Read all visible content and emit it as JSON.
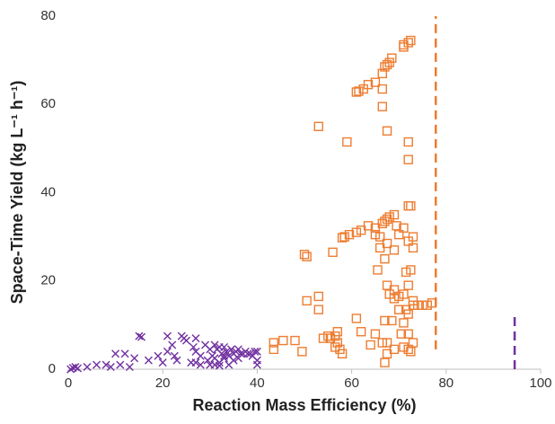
{
  "chart_data": {
    "type": "scatter",
    "x_label": "Reaction Mass Efficiency (%)",
    "y_label": "Space-Time Yield (kg L⁻¹ h⁻¹)",
    "xlim": [
      0,
      100
    ],
    "xticks": [
      0,
      20,
      40,
      60,
      80,
      100
    ],
    "ylim": [
      0,
      80
    ],
    "yticks": [
      0,
      20,
      40,
      60,
      80
    ],
    "grid": false,
    "series": [
      {
        "color": "#7030a0",
        "marker": "x",
        "x": [
          0.5,
          1,
          1.5,
          2,
          4,
          6,
          8,
          9,
          10,
          11,
          12,
          13,
          14,
          15,
          15.5,
          17,
          19,
          20,
          21,
          21,
          22,
          22.5,
          23,
          24,
          24.5,
          25,
          26,
          26.5,
          27,
          27,
          28,
          28,
          29,
          29.5,
          30,
          30,
          30.5,
          31,
          31,
          31.5,
          32,
          32,
          32.5,
          33,
          33,
          33.5,
          34,
          34,
          34.5,
          35,
          35,
          35.5,
          36,
          36.5,
          37,
          37.5,
          38,
          38.5,
          39,
          40,
          40,
          40,
          39.5,
          36,
          33,
          31,
          32,
          27
        ],
        "y": [
          0,
          0.3,
          0.5,
          0.2,
          0.5,
          1,
          1,
          0.5,
          3.5,
          1,
          3.5,
          0.5,
          2.5,
          7.5,
          7.3,
          2,
          3,
          1.5,
          7.5,
          4,
          5.5,
          3,
          2,
          7.5,
          7,
          6.5,
          1.5,
          5,
          7,
          4,
          3,
          1,
          5.5,
          2,
          4.5,
          1,
          3,
          5.5,
          2.5,
          4.5,
          5,
          1.5,
          3.5,
          5,
          2.5,
          4,
          3,
          1,
          4.5,
          2,
          3.5,
          4,
          2.5,
          3.5,
          3.5,
          4,
          3.5,
          3.5,
          3,
          2,
          4,
          1,
          4,
          4.5,
          3,
          1,
          0.8,
          1.5
        ]
      },
      {
        "color": "#ed7d31",
        "marker": "square",
        "x": [
          72.5,
          72,
          71,
          71,
          68.5,
          68,
          67.5,
          67,
          66.5,
          65,
          63.5,
          62.5,
          61.5,
          61,
          66.5,
          66.5,
          67.5,
          72,
          72,
          53,
          59,
          72,
          72.5,
          69,
          68,
          67.5,
          67,
          66.5,
          65,
          63.5,
          62,
          61,
          59.5,
          58.5,
          58,
          69.5,
          70,
          71,
          72,
          73,
          65,
          66,
          56,
          50,
          50.5,
          67.5,
          66,
          65.5,
          67,
          69,
          73,
          72.5,
          71.5,
          67.5,
          69,
          70,
          68,
          71,
          72,
          73,
          73,
          74,
          75,
          76,
          77,
          71.5,
          72,
          70,
          69,
          68.5,
          67,
          61,
          62,
          65,
          66.5,
          67.5,
          71,
          70.5,
          72,
          73,
          72.5,
          71,
          72,
          69,
          67.5,
          67,
          64,
          53,
          53,
          50.5,
          55,
          54,
          55.5,
          56.5,
          57,
          56.5,
          57.5,
          58,
          48,
          45.5,
          43.5,
          43.5,
          49.5,
          57
        ],
        "y": [
          74.5,
          74,
          73.5,
          73,
          70.5,
          69.5,
          69,
          68.5,
          67,
          65,
          64.5,
          63.5,
          63,
          62.8,
          63.5,
          59.5,
          54,
          51.5,
          47.5,
          55,
          51.5,
          37,
          37,
          35,
          34.5,
          34,
          33.5,
          33,
          32,
          32.5,
          31.5,
          31,
          30.5,
          30,
          29.8,
          32.5,
          30.5,
          32,
          29,
          30,
          30.5,
          30,
          26.5,
          26,
          25.5,
          28.5,
          27.5,
          22.5,
          25,
          27,
          27.5,
          22.5,
          22,
          19,
          18,
          16.5,
          17,
          17,
          19,
          15.5,
          14.5,
          14.5,
          14.5,
          14.5,
          15,
          13.5,
          12.5,
          13.5,
          16,
          11,
          11,
          11.5,
          8.5,
          8,
          6,
          6,
          10.5,
          8,
          8,
          6,
          4,
          5,
          4.5,
          4.5,
          3.5,
          1.5,
          5.5,
          16.5,
          13.5,
          15.5,
          7.5,
          7,
          7,
          7.5,
          8.5,
          5,
          4.5,
          3.5,
          6.5,
          6.5,
          6,
          4.5,
          4,
          6
        ]
      }
    ],
    "reference_lines": [
      {
        "x": 77.8,
        "ymin": 4.5,
        "ymax": 80,
        "color": "#ed7d31"
      },
      {
        "x": 94.5,
        "ymin": 0,
        "ymax": 12.5,
        "color": "#7030a0"
      }
    ]
  }
}
